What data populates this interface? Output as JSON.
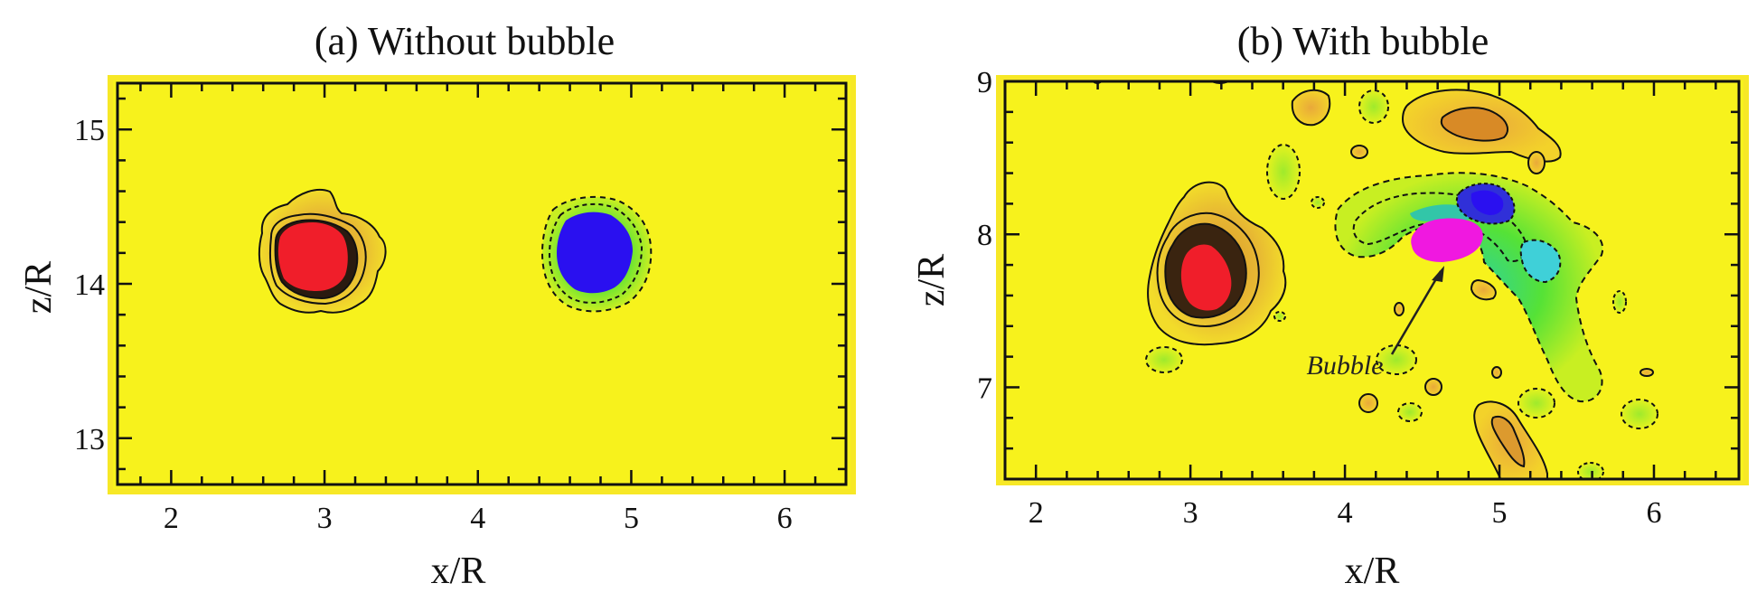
{
  "chart_data": [
    {
      "type": "contour",
      "title": "(a) Without bubble",
      "xlabel": "x/R",
      "ylabel": "z/R",
      "xlim": [
        1.65,
        6.4
      ],
      "ylim": [
        12.7,
        15.3
      ],
      "xticks": [
        2,
        3,
        4,
        5,
        6
      ],
      "yticks": [
        13,
        14,
        15
      ],
      "background_color": "#f7f21c",
      "features": [
        {
          "name": "positive-vortex",
          "x": 3.0,
          "z": 14.17,
          "sign": "positive",
          "color": "#f01e2a"
        },
        {
          "name": "negative-vortex",
          "x": 4.8,
          "z": 14.17,
          "sign": "negative",
          "color": "#2a10f0"
        }
      ],
      "annotations": []
    },
    {
      "type": "contour",
      "title": "(b) With bubble",
      "xlabel": "x/R",
      "ylabel": "z/R",
      "xlim": [
        1.8,
        6.55
      ],
      "ylim": [
        6.4,
        9.0
      ],
      "xticks": [
        2,
        3,
        4,
        5,
        6
      ],
      "yticks": [
        7,
        8,
        9
      ],
      "background_color": "#f7f21c",
      "features": [
        {
          "name": "positive-vortex",
          "x": 3.08,
          "z": 7.67,
          "sign": "positive",
          "color": "#f01e2a"
        },
        {
          "name": "negative-vortex",
          "x": 4.95,
          "z": 8.2,
          "sign": "negative",
          "color": "#2a10f0"
        },
        {
          "name": "bubble",
          "x": 4.67,
          "z": 7.95,
          "color": "#f018e0"
        }
      ],
      "annotations": [
        {
          "text": "Bubble",
          "x": 4.2,
          "z": 7.15,
          "arrow_to_x": 4.58,
          "arrow_to_z": 7.8
        }
      ]
    }
  ]
}
